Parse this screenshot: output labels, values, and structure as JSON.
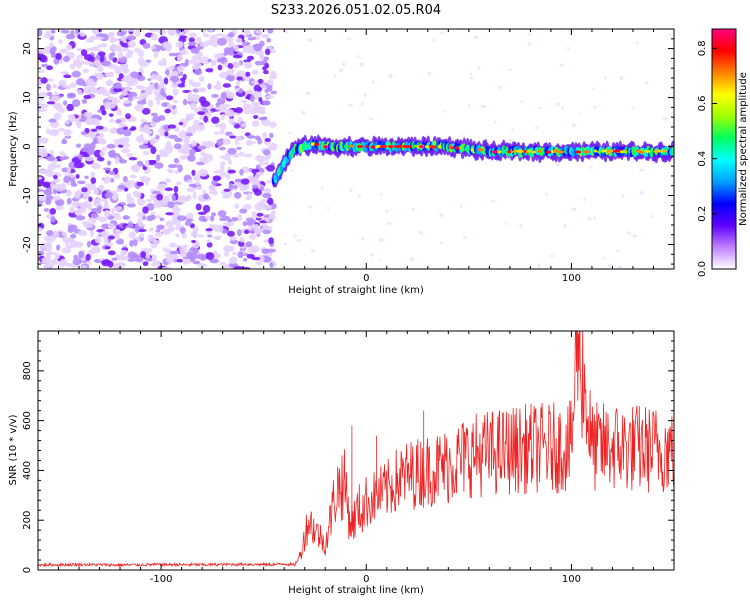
{
  "title": "S233.2026.051.02.05.R04",
  "chart_data": [
    {
      "type": "heatmap",
      "name": "spectrogram",
      "xlabel": "Height of straight line (km)",
      "ylabel": "Frequency (Hz)",
      "xlim": [
        -160,
        150
      ],
      "ylim": [
        -25,
        24
      ],
      "x_ticks": [
        -100,
        0,
        100
      ],
      "y_ticks": [
        -20,
        -10,
        0,
        10,
        20
      ],
      "noise_region_x": [
        -160,
        -45
      ],
      "carrier": {
        "x": [
          -45,
          -42,
          -38,
          -35,
          -30,
          -26,
          -20,
          -10,
          0,
          10,
          20,
          40,
          60,
          80,
          100,
          120,
          150
        ],
        "freq": [
          -7,
          -5,
          -2,
          -0.5,
          0,
          0.5,
          0,
          0,
          0,
          0,
          0,
          0,
          -1,
          -1,
          -1,
          -1,
          -1
        ]
      },
      "colorbar": {
        "label": "Normalized spectral amplitude",
        "range": [
          0.0,
          0.87
        ],
        "ticks": [
          0.0,
          0.2,
          0.4,
          0.6,
          0.8
        ],
        "tick_labels": [
          "0.0",
          "0.2",
          "0.4",
          "0.6",
          "0.8"
        ],
        "colors": [
          "#ffffff",
          "#c080ff",
          "#6000ff",
          "#0000ff",
          "#00a0ff",
          "#00ffff",
          "#00ff60",
          "#a0ff00",
          "#ffff00",
          "#ff8000",
          "#ff0000",
          "#ff0080"
        ]
      },
      "grid": false
    },
    {
      "type": "line",
      "name": "snr",
      "xlabel": "Height of straight line (km)",
      "ylabel": "SNR (10 * v/v)",
      "xlim": [
        -160,
        150
      ],
      "ylim": [
        0,
        960
      ],
      "x_ticks": [
        -100,
        0,
        100
      ],
      "y_ticks": [
        0,
        200,
        400,
        600,
        800
      ],
      "color": "#ee2222",
      "series": [
        {
          "x": [
            -160,
            -140,
            -120,
            -100,
            -80,
            -60,
            -45,
            -40,
            -35,
            -32,
            -30,
            -28,
            -25,
            -22,
            -20,
            -18,
            -15,
            -12,
            -10,
            -8,
            -6,
            -4,
            -2,
            0,
            5,
            10,
            15,
            20,
            30,
            40,
            50,
            60,
            70,
            80,
            90,
            100,
            103,
            110,
            120,
            130,
            140,
            150
          ],
          "y": [
            20,
            22,
            20,
            22,
            21,
            23,
            22,
            25,
            20,
            60,
            140,
            200,
            160,
            130,
            100,
            180,
            310,
            350,
            330,
            190,
            200,
            240,
            250,
            265,
            300,
            320,
            360,
            380,
            400,
            420,
            460,
            470,
            480,
            490,
            490,
            495,
            960,
            490,
            495,
            490,
            485,
            485
          ]
        }
      ],
      "grid": false
    }
  ]
}
